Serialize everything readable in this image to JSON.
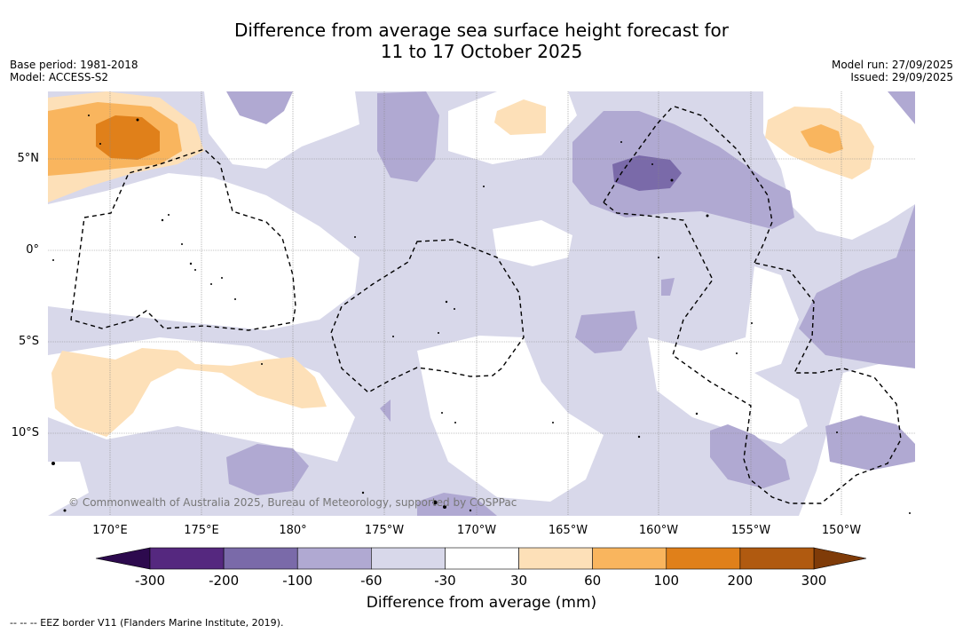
{
  "title_line1": "Difference from average sea surface height forecast for",
  "title_line2": "11 to 17 October 2025",
  "meta_left": {
    "base_period": "Base period: 1981-2018",
    "model": "Model: ACCESS-S2"
  },
  "meta_right": {
    "model_run": "Model run: 27/09/2025",
    "issued": "Issued: 29/09/2025"
  },
  "lat_labels": [
    "5°N",
    "0°",
    "5°S",
    "10°S"
  ],
  "lon_labels": [
    "170°E",
    "175°E",
    "180°",
    "175°W",
    "170°W",
    "165°W",
    "160°W",
    "155°W",
    "150°W"
  ],
  "copyright": "© Commonwealth of Australia 2025, Bureau of Meteorology, supported by COSPPac",
  "colorbar": {
    "label": "Difference from average (mm)",
    "ticks": [
      "-300",
      "-200",
      "-100",
      "-60",
      "-30",
      "30",
      "60",
      "100",
      "200",
      "300"
    ],
    "colors": [
      "#55287f",
      "#7a6aa9",
      "#b0a9d2",
      "#d8d8ea",
      "#ffffff",
      "#fde0b8",
      "#f9b55e",
      "#e0801a",
      "#b05a10"
    ],
    "extend_low_color": "#2d0a4e",
    "extend_high_color": "#7f3b08"
  },
  "footer": "--  --  -- EEZ border V11 (Flanders Marine Institute, 2019)."
}
